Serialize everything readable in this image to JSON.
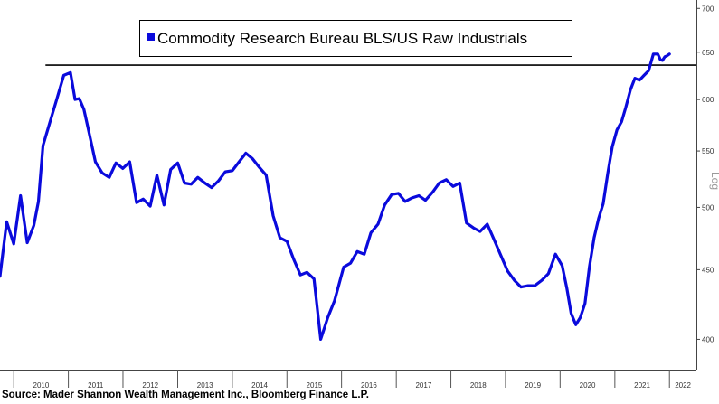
{
  "chart_data": {
    "type": "line",
    "title": "",
    "xlabel": "",
    "ylabel": "Log",
    "log_scale": true,
    "grid": false,
    "legend_position": "top-center",
    "ylim": [
      380,
      710
    ],
    "xlim": [
      "2009-10-01",
      "2022-06-30"
    ],
    "x_tick_labels": [
      "2010",
      "2011",
      "2012",
      "2013",
      "2014",
      "2015",
      "2016",
      "2017",
      "2018",
      "2019",
      "2020",
      "2021",
      "2022"
    ],
    "y_ticks": [
      400,
      450,
      500,
      550,
      600,
      650,
      700
    ],
    "reference_line": {
      "y": 636,
      "from": "2010-08-01",
      "to": "2022-06-30",
      "color": "#000000"
    },
    "series": [
      {
        "name": "Commodity Research Bureau BLS/US Raw Industrials",
        "color": "#0a0adc",
        "x": [
          "2009-10-01",
          "2009-11-15",
          "2010-01-01",
          "2010-02-15",
          "2010-04-01",
          "2010-05-15",
          "2010-06-15",
          "2010-07-15",
          "2010-09-01",
          "2010-10-15",
          "2010-12-01",
          "2011-01-15",
          "2011-02-15",
          "2011-03-15",
          "2011-04-15",
          "2011-05-15",
          "2011-07-01",
          "2011-08-15",
          "2011-10-01",
          "2011-11-15",
          "2011-12-31",
          "2012-02-15",
          "2012-04-01",
          "2012-05-15",
          "2012-07-01",
          "2012-08-15",
          "2012-10-01",
          "2012-11-15",
          "2013-01-01",
          "2013-02-15",
          "2013-04-01",
          "2013-05-15",
          "2013-07-01",
          "2013-08-15",
          "2013-10-01",
          "2013-11-15",
          "2014-01-01",
          "2014-02-15",
          "2014-04-01",
          "2014-05-15",
          "2014-07-01",
          "2014-08-15",
          "2014-10-01",
          "2014-11-15",
          "2015-01-01",
          "2015-02-15",
          "2015-04-01",
          "2015-05-15",
          "2015-07-01",
          "2015-08-15",
          "2015-10-01",
          "2015-11-15",
          "2016-01-15",
          "2016-03-01",
          "2016-04-15",
          "2016-06-01",
          "2016-07-15",
          "2016-09-01",
          "2016-10-15",
          "2016-12-01",
          "2017-01-15",
          "2017-03-01",
          "2017-04-15",
          "2017-06-01",
          "2017-07-15",
          "2017-09-01",
          "2017-10-15",
          "2017-12-01",
          "2018-01-15",
          "2018-03-01",
          "2018-04-15",
          "2018-06-01",
          "2018-07-15",
          "2018-09-01",
          "2018-10-15",
          "2018-12-01",
          "2019-01-15",
          "2019-03-01",
          "2019-04-15",
          "2019-06-01",
          "2019-07-15",
          "2019-09-01",
          "2019-10-15",
          "2019-12-01",
          "2020-01-15",
          "2020-02-15",
          "2020-03-15",
          "2020-04-15",
          "2020-05-15",
          "2020-06-15",
          "2020-07-15",
          "2020-08-15",
          "2020-09-15",
          "2020-10-15",
          "2020-11-15",
          "2020-12-15",
          "2021-01-15",
          "2021-02-15",
          "2021-03-15",
          "2021-04-15",
          "2021-05-15",
          "2021-06-15",
          "2021-07-15",
          "2021-08-15",
          "2021-09-15",
          "2021-10-15",
          "2021-11-01",
          "2021-11-15",
          "2021-12-01",
          "2021-12-15",
          "2022-01-01"
        ],
        "values": [
          445,
          488,
          470,
          510,
          471,
          485,
          505,
          555,
          578,
          600,
          625,
          628,
          600,
          601,
          590,
          570,
          540,
          530,
          526,
          539,
          534,
          540,
          504,
          507,
          501,
          528,
          502,
          533,
          539,
          521,
          520,
          526,
          521,
          517,
          523,
          531,
          532,
          540,
          548,
          543,
          535,
          528,
          493,
          475,
          472,
          458,
          446,
          448,
          443,
          400,
          415,
          427,
          452,
          455,
          464,
          462,
          479,
          486,
          502,
          511,
          512,
          505,
          508,
          510,
          506,
          513,
          521,
          524,
          518,
          521,
          487,
          483,
          480,
          486,
          474,
          461,
          449,
          442,
          437,
          438,
          438,
          442,
          447,
          462,
          453,
          436,
          418,
          410,
          415,
          425,
          452,
          475,
          491,
          503,
          530,
          554,
          570,
          578,
          592,
          610,
          622,
          620,
          625,
          630,
          648,
          648,
          642,
          641,
          645,
          646,
          648
        ]
      }
    ]
  },
  "footer": {
    "source": "Source: Mader Shannon Wealth Management Inc., Bloomberg Finance L.P."
  }
}
